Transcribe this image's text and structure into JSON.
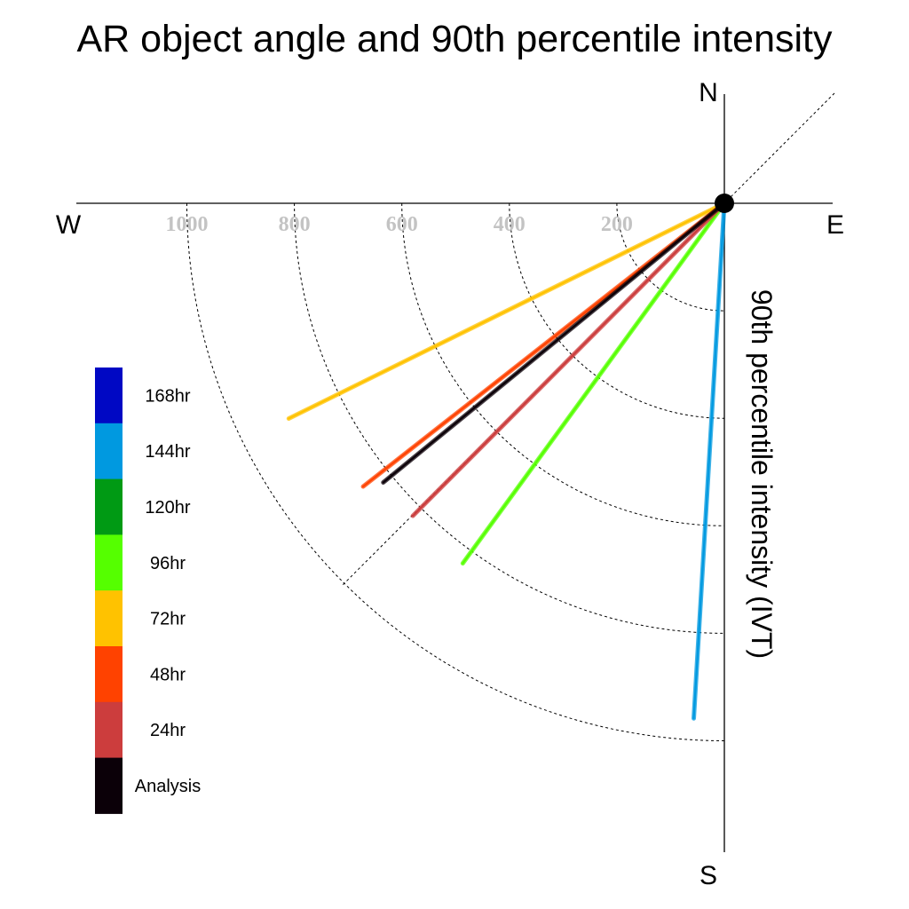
{
  "chart_data": {
    "type": "polar-vector",
    "title": "AR object angle and 90th percentile intensity",
    "radial_axis_label": "90th percentile intensity (IVT)",
    "compass": {
      "north": "N",
      "south": "S",
      "east": "E",
      "west": "W"
    },
    "rings": [
      200,
      400,
      600,
      800,
      1000
    ],
    "ring_tick_labels": [
      "200",
      "400",
      "600",
      "800",
      "1000"
    ],
    "series": [
      {
        "name": "Analysis",
        "color": "#0b0008",
        "angle_deg": 230.7,
        "intensity": 820
      },
      {
        "name": "24hr",
        "color": "#cc3d3d",
        "angle_deg": 224.9,
        "intensity": 821
      },
      {
        "name": "48hr",
        "color": "#ff4200",
        "angle_deg": 231.9,
        "intensity": 854
      },
      {
        "name": "72hr",
        "color": "#ffc200",
        "angle_deg": 243.7,
        "intensity": 904
      },
      {
        "name": "96hr",
        "color": "#55ff00",
        "angle_deg": 216.0,
        "intensity": 828
      },
      {
        "name": "120hr",
        "color": "#009a14",
        "angle_deg": null,
        "intensity": null
      },
      {
        "name": "144hr",
        "color": "#0099e0",
        "angle_deg": 183.4,
        "intensity": 960
      },
      {
        "name": "168hr",
        "color": "#0008c4",
        "angle_deg": null,
        "intensity": null
      }
    ],
    "legend": {
      "position": "left",
      "entries": [
        "168hr",
        "144hr",
        "120hr",
        "96hr",
        "72hr",
        "48hr",
        "24hr",
        "Analysis"
      ],
      "colors": [
        "#0008c4",
        "#0099e0",
        "#009a14",
        "#55ff00",
        "#ffc200",
        "#ff4200",
        "#cc3d3d",
        "#0b0008"
      ]
    }
  }
}
